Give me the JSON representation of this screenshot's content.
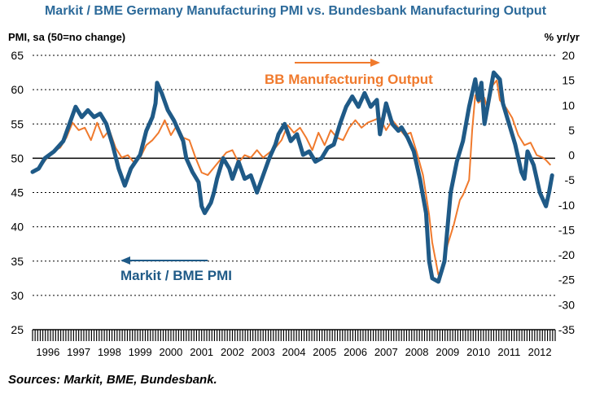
{
  "title": "Markit / BME Germany Manufacturing PMI vs. Bundesbank Manufacturing Output",
  "left_axis_title": "PMI, sa (50=no change)",
  "right_axis_title": "% yr/yr",
  "source": "Sources: Markit, BME, Bundesbank.",
  "annotations": {
    "pmi": "Markit / BME PMI",
    "output": "BB Manufacturing Output"
  },
  "colors": {
    "pmi": "#1f5a87",
    "output": "#f07a2d",
    "title": "#2c6a9a",
    "grid": "#000000"
  },
  "chart_data": {
    "type": "line",
    "grid": "horizontal dotted",
    "x_ticks": [
      "1996",
      "1997",
      "1998",
      "1999",
      "2000",
      "2001",
      "2002",
      "2003",
      "2004",
      "2005",
      "2006",
      "2007",
      "2008",
      "2009",
      "2010",
      "2011",
      "2012"
    ],
    "y_left": {
      "label": "PMI, sa (50=no change)",
      "range": [
        25,
        65
      ],
      "ticks": [
        25,
        30,
        35,
        40,
        45,
        50,
        55,
        60,
        65
      ]
    },
    "y_right": {
      "label": "% yr/yr",
      "range": [
        -35,
        20
      ],
      "ticks": [
        -35,
        -30,
        -25,
        -20,
        -15,
        -10,
        -5,
        0,
        5,
        10,
        15,
        20
      ]
    },
    "series": [
      {
        "name": "Markit / BME PMI",
        "axis": "left",
        "points": [
          [
            1996.0,
            48.0
          ],
          [
            1996.2,
            48.5
          ],
          [
            1996.4,
            50.0
          ],
          [
            1996.7,
            51.0
          ],
          [
            1996.9,
            52.0
          ],
          [
            1997.0,
            52.5
          ],
          [
            1997.2,
            55.0
          ],
          [
            1997.4,
            57.5
          ],
          [
            1997.6,
            56.0
          ],
          [
            1997.8,
            57.0
          ],
          [
            1998.0,
            56.0
          ],
          [
            1998.2,
            56.5
          ],
          [
            1998.4,
            55.0
          ],
          [
            1998.6,
            52.0
          ],
          [
            1998.8,
            48.5
          ],
          [
            1999.0,
            46.0
          ],
          [
            1999.2,
            48.5
          ],
          [
            1999.5,
            50.5
          ],
          [
            1999.7,
            54.0
          ],
          [
            1999.9,
            56.0
          ],
          [
            2000.0,
            58.0
          ],
          [
            2000.05,
            61.0
          ],
          [
            2000.2,
            59.5
          ],
          [
            2000.4,
            57.0
          ],
          [
            2000.6,
            55.5
          ],
          [
            2000.9,
            52.5
          ],
          [
            2001.0,
            50.0
          ],
          [
            2001.2,
            48.0
          ],
          [
            2001.4,
            46.5
          ],
          [
            2001.5,
            43.0
          ],
          [
            2001.6,
            42.0
          ],
          [
            2001.8,
            43.5
          ],
          [
            2001.9,
            45.0
          ],
          [
            2002.0,
            47.0
          ],
          [
            2002.2,
            50.0
          ],
          [
            2002.4,
            48.5
          ],
          [
            2002.5,
            47.0
          ],
          [
            2002.7,
            49.5
          ],
          [
            2002.9,
            47.0
          ],
          [
            2003.1,
            47.5
          ],
          [
            2003.3,
            45.0
          ],
          [
            2003.5,
            47.5
          ],
          [
            2003.7,
            50.0
          ],
          [
            2003.9,
            52.0
          ],
          [
            2004.0,
            53.5
          ],
          [
            2004.2,
            55.0
          ],
          [
            2004.4,
            52.5
          ],
          [
            2004.6,
            53.5
          ],
          [
            2004.8,
            50.5
          ],
          [
            2005.0,
            51.0
          ],
          [
            2005.2,
            49.5
          ],
          [
            2005.4,
            50.0
          ],
          [
            2005.6,
            51.5
          ],
          [
            2005.8,
            52.0
          ],
          [
            2006.0,
            55.0
          ],
          [
            2006.2,
            57.5
          ],
          [
            2006.4,
            59.0
          ],
          [
            2006.6,
            57.5
          ],
          [
            2006.8,
            59.5
          ],
          [
            2007.0,
            57.5
          ],
          [
            2007.2,
            58.5
          ],
          [
            2007.3,
            53.5
          ],
          [
            2007.5,
            58.0
          ],
          [
            2007.7,
            55.0
          ],
          [
            2007.9,
            54.0
          ],
          [
            2008.0,
            54.5
          ],
          [
            2008.2,
            53.0
          ],
          [
            2008.4,
            51.0
          ],
          [
            2008.6,
            47.0
          ],
          [
            2008.8,
            42.0
          ],
          [
            2008.9,
            35.0
          ],
          [
            2009.0,
            32.5
          ],
          [
            2009.2,
            32.0
          ],
          [
            2009.4,
            35.0
          ],
          [
            2009.6,
            45.0
          ],
          [
            2009.8,
            49.5
          ],
          [
            2010.0,
            52.5
          ],
          [
            2010.2,
            57.5
          ],
          [
            2010.4,
            61.5
          ],
          [
            2010.5,
            58.5
          ],
          [
            2010.6,
            61.0
          ],
          [
            2010.7,
            55.0
          ],
          [
            2010.9,
            60.0
          ],
          [
            2011.0,
            62.5
          ],
          [
            2011.2,
            61.5
          ],
          [
            2011.3,
            58.0
          ],
          [
            2011.5,
            55.0
          ],
          [
            2011.7,
            52.0
          ],
          [
            2011.9,
            48.0
          ],
          [
            2012.0,
            47.0
          ],
          [
            2012.1,
            51.0
          ],
          [
            2012.3,
            49.0
          ],
          [
            2012.5,
            45.0
          ],
          [
            2012.7,
            43.0
          ],
          [
            2012.8,
            45.0
          ],
          [
            2012.9,
            47.5
          ]
        ]
      },
      {
        "name": "BB Manufacturing Output",
        "axis": "right",
        "points": [
          [
            1996.0,
            -3.5
          ],
          [
            1996.3,
            -2.0
          ],
          [
            1996.6,
            0.5
          ],
          [
            1996.9,
            1.5
          ],
          [
            1997.1,
            3.5
          ],
          [
            1997.3,
            6.5
          ],
          [
            1997.5,
            5.0
          ],
          [
            1997.7,
            5.5
          ],
          [
            1997.9,
            3.0
          ],
          [
            1998.1,
            6.5
          ],
          [
            1998.3,
            3.5
          ],
          [
            1998.5,
            5.0
          ],
          [
            1998.7,
            1.5
          ],
          [
            1998.9,
            -0.5
          ],
          [
            1999.1,
            0.0
          ],
          [
            1999.3,
            -1.5
          ],
          [
            1999.5,
            -0.5
          ],
          [
            1999.7,
            2.0
          ],
          [
            1999.9,
            3.0
          ],
          [
            2000.1,
            4.5
          ],
          [
            2000.3,
            7.0
          ],
          [
            2000.5,
            4.0
          ],
          [
            2000.7,
            6.0
          ],
          [
            2000.9,
            3.5
          ],
          [
            2001.1,
            3.0
          ],
          [
            2001.3,
            -0.5
          ],
          [
            2001.5,
            -3.5
          ],
          [
            2001.7,
            -4.0
          ],
          [
            2001.9,
            -2.5
          ],
          [
            2002.1,
            -1.0
          ],
          [
            2002.3,
            0.5
          ],
          [
            2002.5,
            1.0
          ],
          [
            2002.7,
            -1.5
          ],
          [
            2002.9,
            0.0
          ],
          [
            2003.1,
            -0.5
          ],
          [
            2003.3,
            1.0
          ],
          [
            2003.5,
            -0.5
          ],
          [
            2003.7,
            0.5
          ],
          [
            2003.9,
            1.5
          ],
          [
            2004.1,
            3.0
          ],
          [
            2004.3,
            6.0
          ],
          [
            2004.5,
            4.5
          ],
          [
            2004.7,
            5.5
          ],
          [
            2004.9,
            3.5
          ],
          [
            2005.1,
            1.0
          ],
          [
            2005.3,
            4.5
          ],
          [
            2005.5,
            2.0
          ],
          [
            2005.7,
            5.0
          ],
          [
            2005.9,
            3.5
          ],
          [
            2006.1,
            3.0
          ],
          [
            2006.3,
            5.5
          ],
          [
            2006.5,
            7.0
          ],
          [
            2006.7,
            5.5
          ],
          [
            2006.9,
            6.5
          ],
          [
            2007.1,
            7.0
          ],
          [
            2007.3,
            7.5
          ],
          [
            2007.5,
            5.0
          ],
          [
            2007.7,
            7.0
          ],
          [
            2007.9,
            5.5
          ],
          [
            2008.1,
            4.0
          ],
          [
            2008.3,
            4.5
          ],
          [
            2008.5,
            0.5
          ],
          [
            2008.7,
            -4.0
          ],
          [
            2008.9,
            -12.0
          ],
          [
            2009.0,
            -17.5
          ],
          [
            2009.2,
            -24.0
          ],
          [
            2009.35,
            -22.5
          ],
          [
            2009.5,
            -18.0
          ],
          [
            2009.7,
            -14.0
          ],
          [
            2009.9,
            -9.0
          ],
          [
            2010.0,
            -8.0
          ],
          [
            2010.2,
            -5.0
          ],
          [
            2010.3,
            5.0
          ],
          [
            2010.4,
            12.0
          ],
          [
            2010.5,
            10.5
          ],
          [
            2010.7,
            11.5
          ],
          [
            2010.8,
            9.0
          ],
          [
            2010.9,
            13.5
          ],
          [
            2011.1,
            15.0
          ],
          [
            2011.2,
            11.0
          ],
          [
            2011.4,
            9.5
          ],
          [
            2011.6,
            7.5
          ],
          [
            2011.8,
            4.0
          ],
          [
            2012.0,
            2.0
          ],
          [
            2012.2,
            2.5
          ],
          [
            2012.4,
            0.0
          ],
          [
            2012.6,
            -0.5
          ],
          [
            2012.7,
            -1.0
          ],
          [
            2012.85,
            -2.0
          ]
        ]
      }
    ]
  }
}
